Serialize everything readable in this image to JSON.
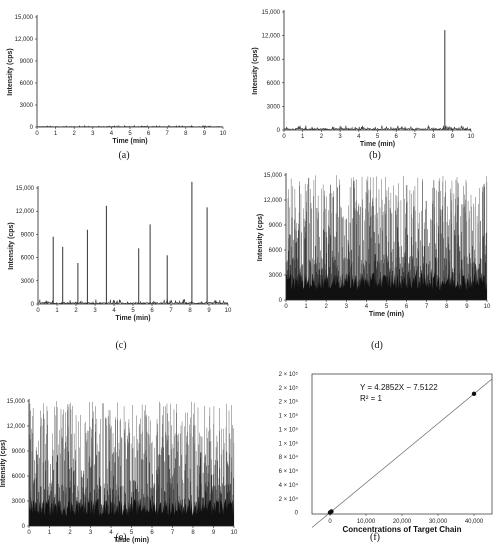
{
  "chart_data": [
    {
      "panel": "a",
      "type": "line",
      "caption": "(a)",
      "xlabel": "Time (min)",
      "ylabel": "Intensity (cps)",
      "xlim": [
        0,
        10
      ],
      "ylim": [
        0,
        15000
      ],
      "xticks": [
        "0",
        "1",
        "2",
        "3",
        "4",
        "5",
        "6",
        "7",
        "8",
        "9",
        "10"
      ],
      "yticks": [
        "0",
        "3000",
        "6000",
        "9000",
        "12,000",
        "15,000"
      ],
      "pattern": "baseline",
      "baseline_max": 200,
      "spikes": []
    },
    {
      "panel": "b",
      "type": "line",
      "caption": "(b)",
      "xlabel": "Time (min)",
      "ylabel": "Intensity (cps)",
      "xlim": [
        0,
        10
      ],
      "ylim": [
        0,
        15000
      ],
      "xticks": [
        "0",
        "1",
        "2",
        "3",
        "4",
        "5",
        "6",
        "7",
        "8",
        "9",
        "10"
      ],
      "yticks": [
        "0",
        "3000",
        "6000",
        "9000",
        "12,000",
        "15,000"
      ],
      "pattern": "baseline",
      "baseline_max": 600,
      "spikes": [
        {
          "x": 8.6,
          "y": 12700
        }
      ]
    },
    {
      "panel": "c",
      "type": "line",
      "caption": "(c)",
      "xlabel": "Time (min)",
      "ylabel": "Intensity (cps)",
      "xlim": [
        0,
        10
      ],
      "ylim": [
        0,
        15000
      ],
      "xticks": [
        "0",
        "1",
        "2",
        "3",
        "4",
        "5",
        "6",
        "7",
        "8",
        "9",
        "10"
      ],
      "yticks": [
        "0",
        "3000",
        "6000",
        "9000",
        "12,000",
        "15,000"
      ],
      "pattern": "baseline",
      "baseline_max": 600,
      "spikes": [
        {
          "x": 0.8,
          "y": 8700
        },
        {
          "x": 1.3,
          "y": 7400
        },
        {
          "x": 2.1,
          "y": 5300
        },
        {
          "x": 2.6,
          "y": 9600
        },
        {
          "x": 3.6,
          "y": 12700
        },
        {
          "x": 5.3,
          "y": 7200
        },
        {
          "x": 5.9,
          "y": 10300
        },
        {
          "x": 6.8,
          "y": 6300
        },
        {
          "x": 8.1,
          "y": 15800
        },
        {
          "x": 8.9,
          "y": 12500
        }
      ]
    },
    {
      "panel": "d",
      "type": "line",
      "caption": "(d)",
      "xlabel": "Time (min)",
      "ylabel": "Intensity (cps)",
      "xlim": [
        0,
        10
      ],
      "ylim": [
        0,
        15000
      ],
      "xticks": [
        "0",
        "1",
        "2",
        "3",
        "4",
        "5",
        "6",
        "7",
        "8",
        "9",
        "10"
      ],
      "yticks": [
        "0",
        "3000",
        "6000",
        "9000",
        "12,000",
        "15,000"
      ],
      "pattern": "dense",
      "dense_max": 15000,
      "spikes": []
    },
    {
      "panel": "e",
      "type": "line",
      "caption": "(e)",
      "xlabel": "Time (min)",
      "ylabel": "Intensity (cps)",
      "xlim": [
        0,
        10
      ],
      "ylim": [
        0,
        15000
      ],
      "xticks": [
        "0",
        "1",
        "2",
        "3",
        "4",
        "5",
        "6",
        "7",
        "8",
        "9",
        "10"
      ],
      "yticks": [
        "0",
        "3000",
        "6000",
        "9000",
        "12,000",
        "15,000"
      ],
      "pattern": "dense",
      "dense_max": 15000,
      "spikes": []
    },
    {
      "panel": "f",
      "type": "scatter",
      "caption": "(f)",
      "xlabel": "Concentrations of Target Chain",
      "ylabel": "",
      "xlim": [
        -5000,
        45000
      ],
      "ylim": [
        -2000,
        200000
      ],
      "xticks": [
        {
          "value": 0,
          "label": "0"
        },
        {
          "value": 10000,
          "label": "10,000"
        },
        {
          "value": 20000,
          "label": "20,000"
        },
        {
          "value": 30000,
          "label": "30,000"
        },
        {
          "value": 40000,
          "label": "40,000"
        }
      ],
      "yticks": [
        {
          "value": 0,
          "label": "0"
        },
        {
          "value": 20000,
          "label": "2 × 10⁴"
        },
        {
          "value": 40000,
          "label": "4 × 10⁴"
        },
        {
          "value": 60000,
          "label": "6 × 10⁴"
        },
        {
          "value": 80000,
          "label": "8 × 10⁴"
        },
        {
          "value": 100000,
          "label": "1 × 10⁵"
        },
        {
          "value": 120000,
          "label": "1 × 10⁵"
        },
        {
          "value": 140000,
          "label": "1 × 10⁵"
        },
        {
          "value": 160000,
          "label": "2 × 10⁵"
        },
        {
          "value": 180000,
          "label": "2 × 10⁵"
        },
        {
          "value": 200000,
          "label": "2 × 10⁵"
        }
      ],
      "points": [
        {
          "x": 0,
          "y": 0
        },
        {
          "x": 40,
          "y": 164
        },
        {
          "x": 400,
          "y": 1707
        },
        {
          "x": 40000,
          "y": 171400
        }
      ],
      "fit": {
        "slope": 4.2852,
        "intercept": -7.5122
      },
      "equation": "Y = 4.2852X − 7.5122",
      "r2": "R² = 1"
    }
  ]
}
